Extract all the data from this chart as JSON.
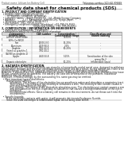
{
  "title": "Safety data sheet for chemical products (SDS)",
  "header_left": "Product name: Lithium Ion Battery Cell",
  "header_right_line1": "Reference number: SDS-LIB-000019",
  "header_right_line2": "Established / Revision: Dec.7,2016",
  "section1_title": "1. PRODUCT AND COMPANY IDENTIFICATION",
  "section1_lines": [
    "  • Product name: Lithium Ion Battery Cell",
    "  • Product code: Cylindrical-type cell",
    "        (LI-18650U, LI-18650U, LI-18650A)",
    "  • Company name:    Sanyo Electric Co., Ltd., Mobile Energy Company",
    "  • Address:           2-21  Kannondori, Sumoto-City, Hyogo, Japan",
    "  • Telephone number: +81-799-26-4111",
    "  • Fax number:  +81-799-26-4120",
    "  • Emergency telephone number (Weekdays) +81-799-26-3042",
    "                                              (Night and holiday) +81-799-26-4101"
  ],
  "section2_title": "2. COMPOSITION / INFORMATION ON INGREDIENTS",
  "section2_lines": [
    "  • Substance or preparation: Preparation",
    "  • Information about the chemical nature of product:"
  ],
  "table_headers1": [
    "Component /",
    "CAS number",
    "Concentration /",
    "Classification and"
  ],
  "table_headers2": [
    "General name",
    "",
    "Concentration range",
    "hazard labeling"
  ],
  "table_rows": [
    [
      "Lithium cobalt oxide",
      "-",
      "30-60%",
      ""
    ],
    [
      "(LiMn-Co-NiO2)",
      "",
      "",
      ""
    ],
    [
      "Iron",
      "26300-0.0",
      "15-20%",
      "-"
    ],
    [
      "Aluminum",
      "7429-90-5",
      "2-6%",
      "-"
    ],
    [
      "Graphite",
      "7782-42-5",
      "10-20%",
      "-"
    ],
    [
      "(listed as graphite-1",
      "7782-44-2",
      "",
      ""
    ],
    [
      "(AI-98) as graphite-1)",
      "",
      "",
      ""
    ],
    [
      "Copper",
      "7440-50-8",
      "5-15%",
      "Sensitization of the skin"
    ],
    [
      "",
      "",
      "",
      "group No.2"
    ],
    [
      "Organic electrolyte",
      "-",
      "10-20%",
      "Inflammable liquid"
    ]
  ],
  "section3_title": "3. HAZARDS IDENTIFICATION",
  "section3_text": [
    "For the battery cell, chemical materials are stored in a hermetically sealed metal case, designed to withstand",
    "temperature changes and pressure conditions during normal use. As a result, during normal use, there is no",
    "physical danger of ignition or explosion and there is no danger of hazardous materials leakage.",
    "However, if exposed to a fire, added mechanical shocks, decomposed, when electrolyte otherwise may issue.",
    "Be gas, smoke cannot be operated. The battery cell case will be breached of the potholers, hazardous",
    "materials may be released.",
    "Moreover, if heated strongly by the surrounding fire, some gas may be emitted.",
    "",
    "  • Most important hazard and effects:",
    "       Human health effects:",
    "            Inhalation: The release of the electrolyte has an anesthesia action and stimulates a respiratory tract.",
    "            Skin contact: The release of the electrolyte stimulates a skin. The electrolyte skin contact causes a",
    "            sore and stimulation on the skin.",
    "            Eye contact: The release of the electrolyte stimulates eyes. The electrolyte eye contact causes a sore",
    "            and stimulation on the eye. Especially, a substance that causes a strong inflammation of the eye is",
    "            contained.",
    "            Environmental effects: Since a battery cell remains in the environment, do not throw out it into the",
    "            environment.",
    "",
    "  • Specific hazards:",
    "       If the electrolyte contacts with water, it will generate detrimental hydrogen fluoride.",
    "       Since the used electrolyte is inflammable liquid, do not bring close to fire."
  ],
  "bg_color": "#ffffff",
  "line_color": "#888888"
}
